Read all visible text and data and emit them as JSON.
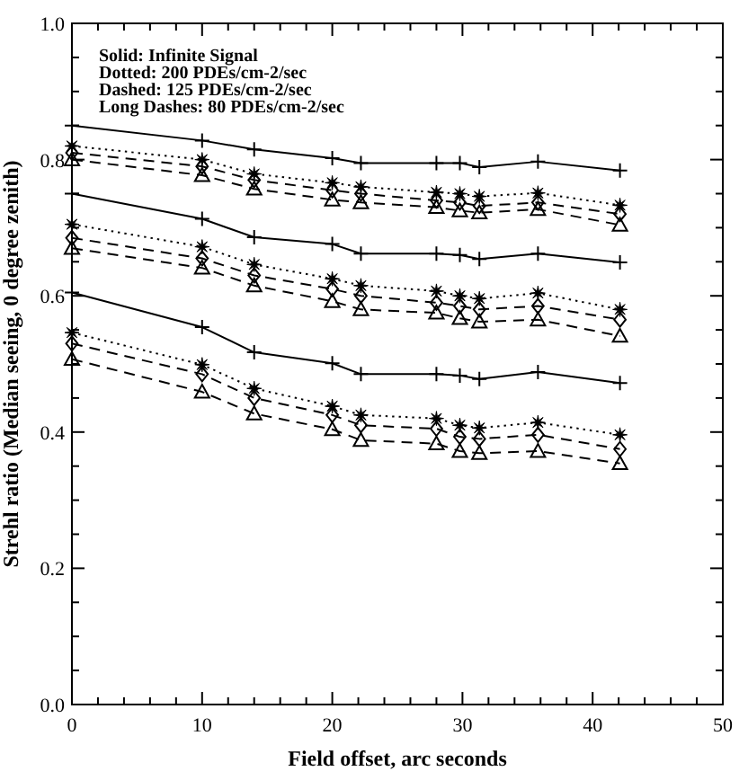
{
  "chart_data": {
    "type": "line",
    "xlabel": "Field offset, arc seconds",
    "ylabel": "Strehl ratio (Median seeing, 0 degree zenith)",
    "annotations": [
      "Solid:  Infinite Signal",
      "Dotted:  200 PDEs/cm-2/sec",
      "Dashed:  125 PDEs/cm-2/sec",
      "Long Dashes:  80 PDEs/cm-2/sec"
    ],
    "x": [
      0,
      10,
      14,
      20,
      22.2,
      28,
      29.8,
      31.3,
      35.8,
      42.1
    ],
    "xlim": [
      0,
      50
    ],
    "xticks": [
      0,
      {
        "value": 2,
        "label": null
      },
      {
        "value": 4,
        "label": null
      },
      {
        "value": 6,
        "label": null
      },
      {
        "value": 8,
        "label": null
      },
      10,
      {
        "value": 12,
        "label": null
      },
      {
        "value": 14,
        "label": null
      },
      {
        "value": 16,
        "label": null
      },
      {
        "value": 18,
        "label": null
      },
      20,
      {
        "value": 22,
        "label": null
      },
      {
        "value": 24,
        "label": null
      },
      {
        "value": 26,
        "label": null
      },
      {
        "value": 28,
        "label": null
      },
      30,
      {
        "value": 32,
        "label": null
      },
      {
        "value": 34,
        "label": null
      },
      {
        "value": 36,
        "label": null
      },
      {
        "value": 38,
        "label": null
      },
      40,
      {
        "value": 42,
        "label": null
      },
      {
        "value": 44,
        "label": null
      },
      {
        "value": 46,
        "label": null
      },
      {
        "value": 48,
        "label": null
      },
      50
    ],
    "ylim": [
      0,
      1
    ],
    "yticks": [
      {
        "value": 0,
        "label": "0.0"
      },
      {
        "value": 0.05,
        "label": null
      },
      {
        "value": 0.1,
        "label": null
      },
      {
        "value": 0.15,
        "label": null
      },
      {
        "value": 0.2,
        "label": "0.2"
      },
      {
        "value": 0.25,
        "label": null
      },
      {
        "value": 0.3,
        "label": null
      },
      {
        "value": 0.35,
        "label": null
      },
      {
        "value": 0.4,
        "label": "0.4"
      },
      {
        "value": 0.45,
        "label": null
      },
      {
        "value": 0.5,
        "label": null
      },
      {
        "value": 0.55,
        "label": null
      },
      {
        "value": 0.6,
        "label": "0.6"
      },
      {
        "value": 0.65,
        "label": null
      },
      {
        "value": 0.7,
        "label": null
      },
      {
        "value": 0.75,
        "label": null
      },
      {
        "value": 0.8,
        "label": "0.8"
      },
      {
        "value": 0.85,
        "label": null
      },
      {
        "value": 0.9,
        "label": null
      },
      {
        "value": 0.95,
        "label": null
      },
      {
        "value": 1,
        "label": "1.0"
      }
    ],
    "grid": false,
    "series": [
      {
        "color": "#000000",
        "line_style": "solid",
        "marker": "cross",
        "values": [
          0.85,
          0.828,
          0.815,
          0.802,
          0.795,
          0.795,
          0.795,
          0.789,
          0.797,
          0.784
        ]
      },
      {
        "color": "#000000",
        "line_style": "dotted",
        "marker": "star",
        "values": [
          0.82,
          0.8,
          0.779,
          0.766,
          0.76,
          0.752,
          0.75,
          0.746,
          0.751,
          0.733
        ]
      },
      {
        "color": "#000000",
        "line_style": "dashed",
        "marker": "diamond",
        "values": [
          0.81,
          0.79,
          0.77,
          0.755,
          0.75,
          0.74,
          0.737,
          0.732,
          0.737,
          0.72
        ]
      },
      {
        "color": "#000000",
        "line_style": "dashed",
        "marker": "triangle",
        "values": [
          0.8,
          0.777,
          0.757,
          0.741,
          0.737,
          0.73,
          0.725,
          0.722,
          0.727,
          0.704
        ]
      },
      {
        "color": "#000000",
        "line_style": "solid",
        "marker": "cross",
        "values": [
          0.75,
          0.713,
          0.686,
          0.676,
          0.662,
          0.662,
          0.66,
          0.654,
          0.662,
          0.649
        ]
      },
      {
        "color": "#000000",
        "line_style": "dotted",
        "marker": "star",
        "values": [
          0.705,
          0.672,
          0.646,
          0.625,
          0.615,
          0.607,
          0.6,
          0.596,
          0.604,
          0.58
        ]
      },
      {
        "color": "#000000",
        "line_style": "dashed",
        "marker": "diamond",
        "values": [
          0.685,
          0.655,
          0.63,
          0.61,
          0.6,
          0.59,
          0.585,
          0.58,
          0.585,
          0.565
        ]
      },
      {
        "color": "#000000",
        "line_style": "dashed",
        "marker": "triangle",
        "values": [
          0.67,
          0.641,
          0.615,
          0.592,
          0.58,
          0.575,
          0.567,
          0.562,
          0.565,
          0.541
        ]
      },
      {
        "color": "#000000",
        "line_style": "solid",
        "marker": "cross",
        "values": [
          0.605,
          0.554,
          0.517,
          0.501,
          0.485,
          0.485,
          0.483,
          0.478,
          0.488,
          0.472
        ]
      },
      {
        "color": "#000000",
        "line_style": "dotted",
        "marker": "star",
        "values": [
          0.546,
          0.499,
          0.464,
          0.438,
          0.425,
          0.42,
          0.41,
          0.406,
          0.414,
          0.396
        ]
      },
      {
        "color": "#000000",
        "line_style": "dashed",
        "marker": "diamond",
        "values": [
          0.53,
          0.485,
          0.45,
          0.425,
          0.41,
          0.405,
          0.393,
          0.39,
          0.396,
          0.375
        ]
      },
      {
        "color": "#000000",
        "line_style": "dashed",
        "marker": "triangle",
        "values": [
          0.507,
          0.459,
          0.427,
          0.404,
          0.388,
          0.383,
          0.372,
          0.369,
          0.372,
          0.354
        ]
      }
    ]
  }
}
